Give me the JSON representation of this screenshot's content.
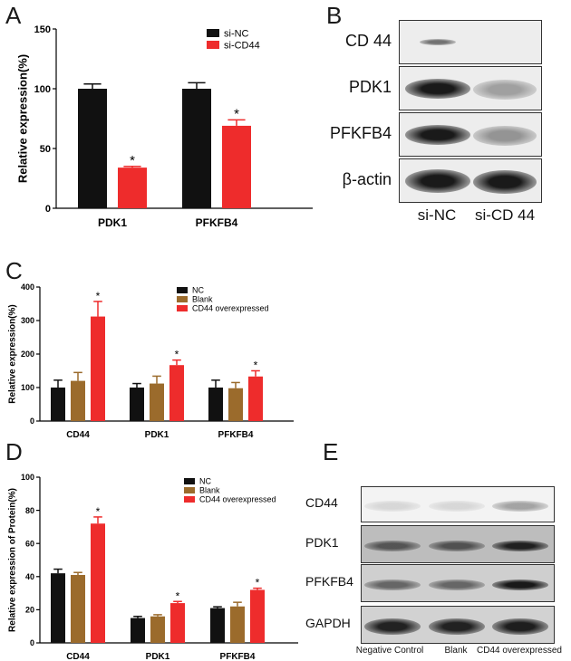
{
  "panels": {
    "a": "A",
    "b": "B",
    "c": "C",
    "d": "D",
    "e": "E"
  },
  "chart_data": [
    {
      "id": "A",
      "type": "bar",
      "ylabel": "Relative expression(%)",
      "xlabel": "",
      "categories": [
        "PDK1",
        "PFKFB4"
      ],
      "ylim": [
        0,
        150
      ],
      "yticks": [
        0,
        50,
        100,
        150
      ],
      "legend_position": "top-right",
      "series": [
        {
          "name": "si-NC",
          "color": "#111111",
          "values": [
            100,
            100
          ],
          "errors": [
            4,
            5
          ]
        },
        {
          "name": "si-CD44",
          "color": "#ee2c2c",
          "values": [
            34,
            69
          ],
          "errors": [
            1,
            5
          ]
        }
      ],
      "annotations": [
        {
          "category": "PDK1",
          "series": "si-CD44",
          "text": "*"
        },
        {
          "category": "PFKFB4",
          "series": "si-CD44",
          "text": "*"
        }
      ]
    },
    {
      "id": "C",
      "type": "bar",
      "ylabel": "Relative expression(%)",
      "xlabel": "",
      "categories": [
        "CD44",
        "PDK1",
        "PFKFB4"
      ],
      "ylim": [
        0,
        400
      ],
      "yticks": [
        0,
        100,
        200,
        300,
        400
      ],
      "legend_position": "top-right",
      "series": [
        {
          "name": "NC",
          "color": "#111111",
          "values": [
            100,
            100,
            100
          ],
          "errors": [
            22,
            12,
            22
          ]
        },
        {
          "name": "Blank",
          "color": "#9b6b2c",
          "values": [
            120,
            112,
            98
          ],
          "errors": [
            25,
            22,
            17
          ]
        },
        {
          "name": "CD44 overexpressed",
          "color": "#ee2c2c",
          "values": [
            312,
            167,
            133
          ],
          "errors": [
            45,
            15,
            17
          ]
        }
      ],
      "annotations": [
        {
          "category": "CD44",
          "series": "CD44 overexpressed",
          "text": "*"
        },
        {
          "category": "PDK1",
          "series": "CD44 overexpressed",
          "text": "*"
        },
        {
          "category": "PFKFB4",
          "series": "CD44 overexpressed",
          "text": "*"
        }
      ]
    },
    {
      "id": "D",
      "type": "bar",
      "ylabel": "Relative expression of Protein(%)",
      "xlabel": "",
      "categories": [
        "CD44",
        "PDK1",
        "PFKFB4"
      ],
      "ylim": [
        0,
        100
      ],
      "yticks": [
        0,
        20,
        40,
        60,
        80,
        100
      ],
      "legend_position": "top-right",
      "series": [
        {
          "name": "NC",
          "color": "#111111",
          "values": [
            42,
            15,
            21
          ],
          "errors": [
            2.5,
            1,
            0.8
          ]
        },
        {
          "name": "Blank",
          "color": "#9b6b2c",
          "values": [
            41,
            16,
            22
          ],
          "errors": [
            1.5,
            1,
            2.5
          ]
        },
        {
          "name": "CD44 overexpressed",
          "color": "#ee2c2c",
          "values": [
            72,
            24,
            32
          ],
          "errors": [
            4,
            1,
            1
          ]
        }
      ],
      "annotations": [
        {
          "category": "CD44",
          "series": "CD44 overexpressed",
          "text": "*"
        },
        {
          "category": "PDK1",
          "series": "CD44 overexpressed",
          "text": "*"
        },
        {
          "category": "PFKFB4",
          "series": "CD44 overexpressed",
          "text": "*"
        }
      ]
    }
  ],
  "blot_b": {
    "rows": [
      "CD 44",
      "PDK1",
      "PFKFB4",
      "β-actin"
    ],
    "lanes": [
      "si-NC",
      "si-CD 44"
    ]
  },
  "blot_e": {
    "rows": [
      "CD44",
      "PDK1",
      "PFKFB4",
      "GAPDH"
    ],
    "lanes": [
      "Negative Control",
      "Blank",
      "CD44 overexpressed"
    ]
  }
}
